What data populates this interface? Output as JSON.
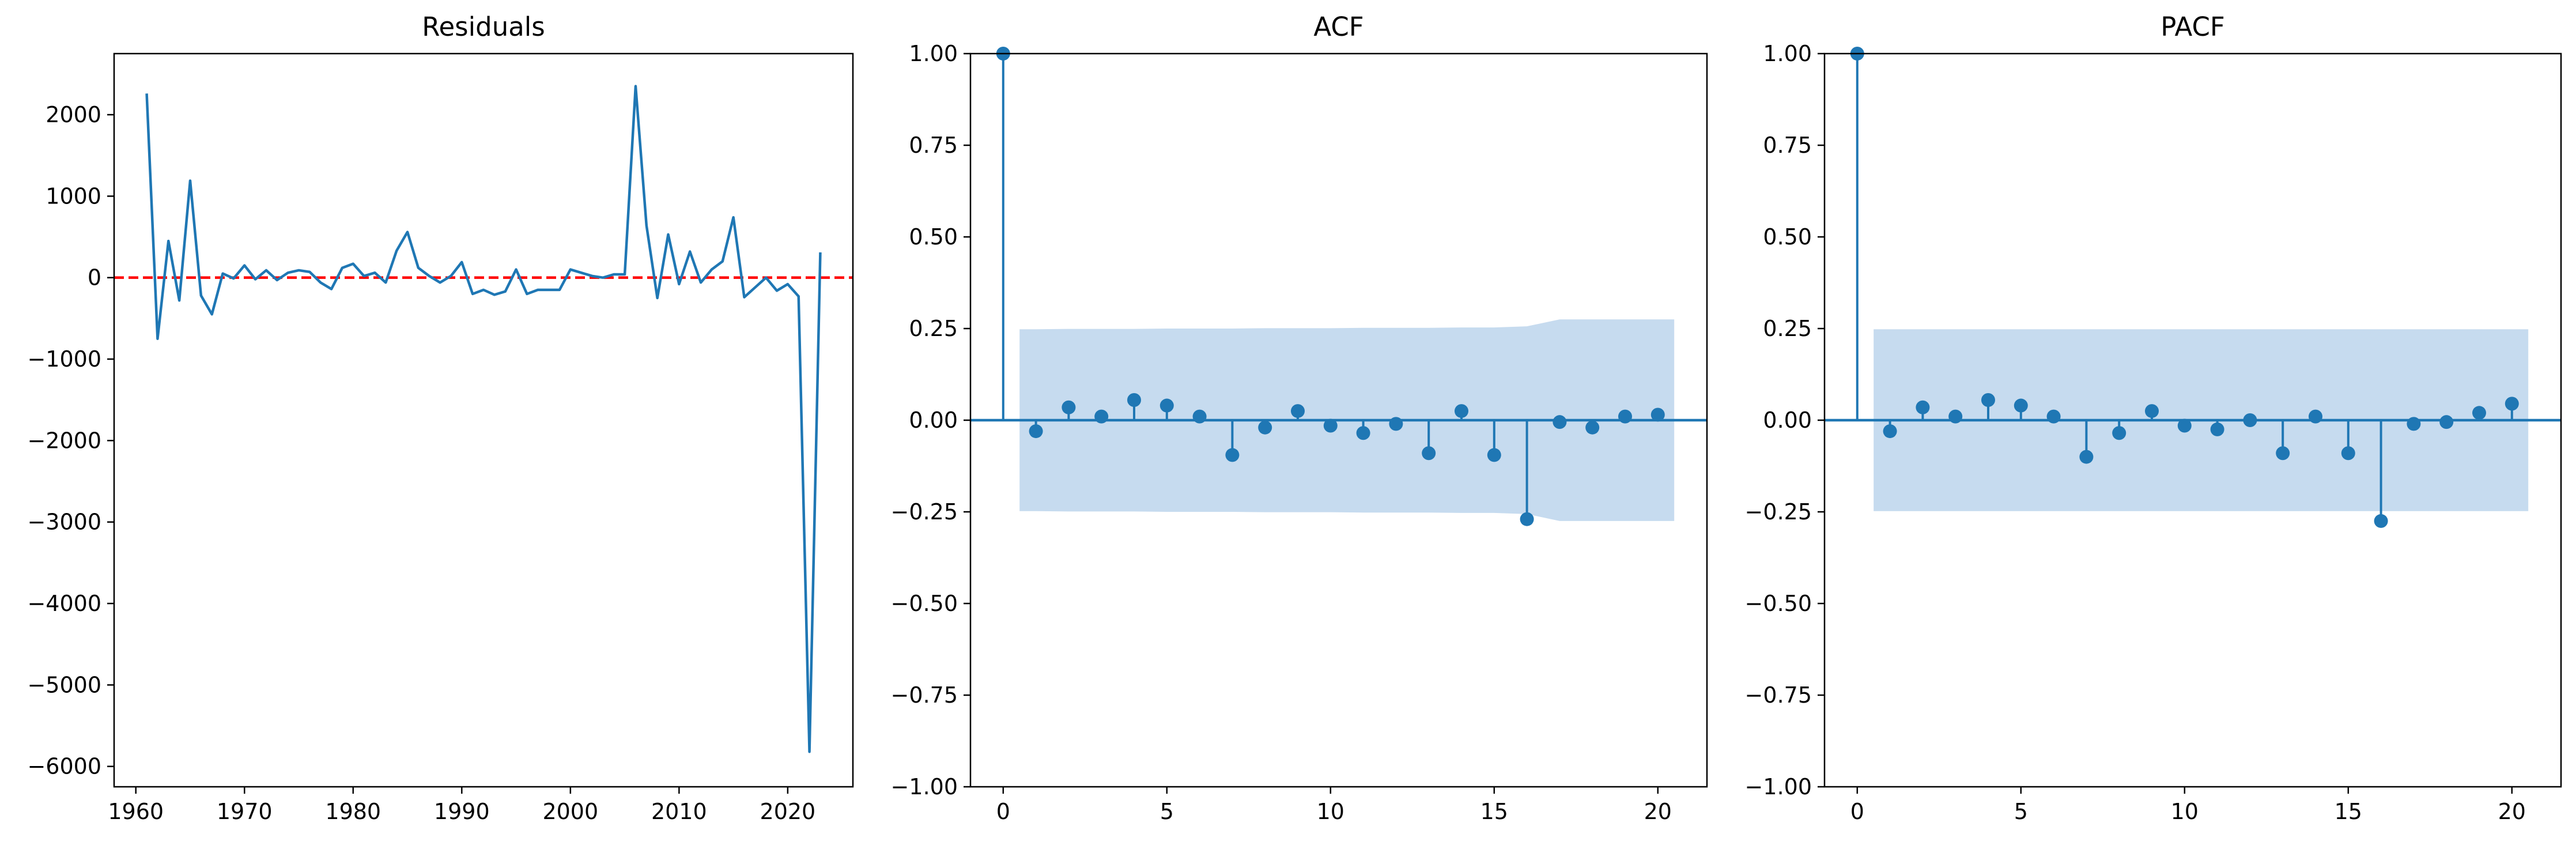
{
  "chart_data": [
    {
      "type": "line",
      "title": "Residuals",
      "xlabel": "",
      "ylabel": "",
      "xlim": [
        1958,
        2026
      ],
      "ylim": [
        -6250,
        2750
      ],
      "xticks": [
        1960,
        1970,
        1980,
        1990,
        2000,
        2010,
        2020
      ],
      "yticks": [
        -6000,
        -5000,
        -4000,
        -3000,
        -2000,
        -1000,
        0,
        1000,
        2000
      ],
      "zero_line": {
        "y": 0,
        "color": "#ff0000",
        "style": "dashed"
      },
      "series_color": "#1f77b4",
      "x": [
        1961,
        1962,
        1963,
        1964,
        1965,
        1966,
        1967,
        1968,
        1969,
        1970,
        1971,
        1972,
        1973,
        1974,
        1975,
        1976,
        1977,
        1978,
        1979,
        1980,
        1981,
        1982,
        1983,
        1984,
        1985,
        1986,
        1987,
        1988,
        1989,
        1990,
        1991,
        1992,
        1993,
        1994,
        1995,
        1996,
        1997,
        1998,
        1999,
        2000,
        2001,
        2002,
        2003,
        2004,
        2005,
        2006,
        2007,
        2008,
        2009,
        2010,
        2011,
        2012,
        2013,
        2014,
        2015,
        2016,
        2017,
        2018,
        2019,
        2020,
        2021,
        2022,
        2023
      ],
      "y": [
        2260,
        -750,
        450,
        -280,
        1190,
        -220,
        -450,
        50,
        -10,
        150,
        -20,
        90,
        -30,
        60,
        90,
        70,
        -60,
        -140,
        120,
        170,
        20,
        60,
        -60,
        330,
        560,
        120,
        20,
        -60,
        20,
        190,
        -200,
        -150,
        -210,
        -170,
        100,
        -200,
        -150,
        -150,
        -150,
        100,
        60,
        20,
        0,
        40,
        40,
        2350,
        640,
        -250,
        530,
        -80,
        320,
        -60,
        100,
        200,
        740,
        -240,
        -120,
        0,
        -160,
        -80,
        -230,
        -5820,
        310
      ]
    },
    {
      "type": "stem",
      "title": "ACF",
      "xlim": [
        -1,
        21.5
      ],
      "ylim": [
        -1,
        1
      ],
      "xticks": [
        0,
        5,
        10,
        15,
        20
      ],
      "yticks": [
        -1.0,
        -0.75,
        -0.5,
        -0.25,
        0.0,
        0.25,
        0.5,
        0.75,
        1.0
      ],
      "series_color": "#1f77b4",
      "band_color": "#c6dbef",
      "lags": [
        0,
        1,
        2,
        3,
        4,
        5,
        6,
        7,
        8,
        9,
        10,
        11,
        12,
        13,
        14,
        15,
        16,
        17,
        18,
        19,
        20
      ],
      "values": [
        1.0,
        -0.03,
        0.035,
        0.01,
        0.055,
        0.04,
        0.01,
        -0.095,
        -0.02,
        0.025,
        -0.015,
        -0.035,
        -0.01,
        -0.09,
        0.025,
        -0.095,
        -0.27,
        -0.005,
        -0.02,
        0.01,
        0.015
      ],
      "conf_x": [
        0.5,
        1,
        2,
        3,
        4,
        5,
        6,
        7,
        8,
        9,
        10,
        11,
        12,
        13,
        14,
        15,
        16,
        17,
        18,
        19,
        20,
        20.5
      ],
      "conf": [
        0.248,
        0.248,
        0.249,
        0.249,
        0.249,
        0.25,
        0.25,
        0.25,
        0.251,
        0.251,
        0.251,
        0.252,
        0.252,
        0.252,
        0.253,
        0.253,
        0.256,
        0.275,
        0.275,
        0.275,
        0.275,
        0.275
      ]
    },
    {
      "type": "stem",
      "title": "PACF",
      "xlim": [
        -1,
        21.5
      ],
      "ylim": [
        -1,
        1
      ],
      "xticks": [
        0,
        5,
        10,
        15,
        20
      ],
      "yticks": [
        -1.0,
        -0.75,
        -0.5,
        -0.25,
        0.0,
        0.25,
        0.5,
        0.75,
        1.0
      ],
      "series_color": "#1f77b4",
      "band_color": "#c6dbef",
      "lags": [
        0,
        1,
        2,
        3,
        4,
        5,
        6,
        7,
        8,
        9,
        10,
        11,
        12,
        13,
        14,
        15,
        16,
        17,
        18,
        19,
        20
      ],
      "values": [
        1.0,
        -0.03,
        0.035,
        0.01,
        0.055,
        0.04,
        0.01,
        -0.1,
        -0.035,
        0.025,
        -0.015,
        -0.025,
        0.0,
        -0.09,
        0.01,
        -0.09,
        -0.275,
        -0.01,
        -0.005,
        0.02,
        0.045
      ],
      "conf_x": [
        0.5,
        20.5
      ],
      "conf": [
        0.248,
        0.248
      ]
    }
  ]
}
